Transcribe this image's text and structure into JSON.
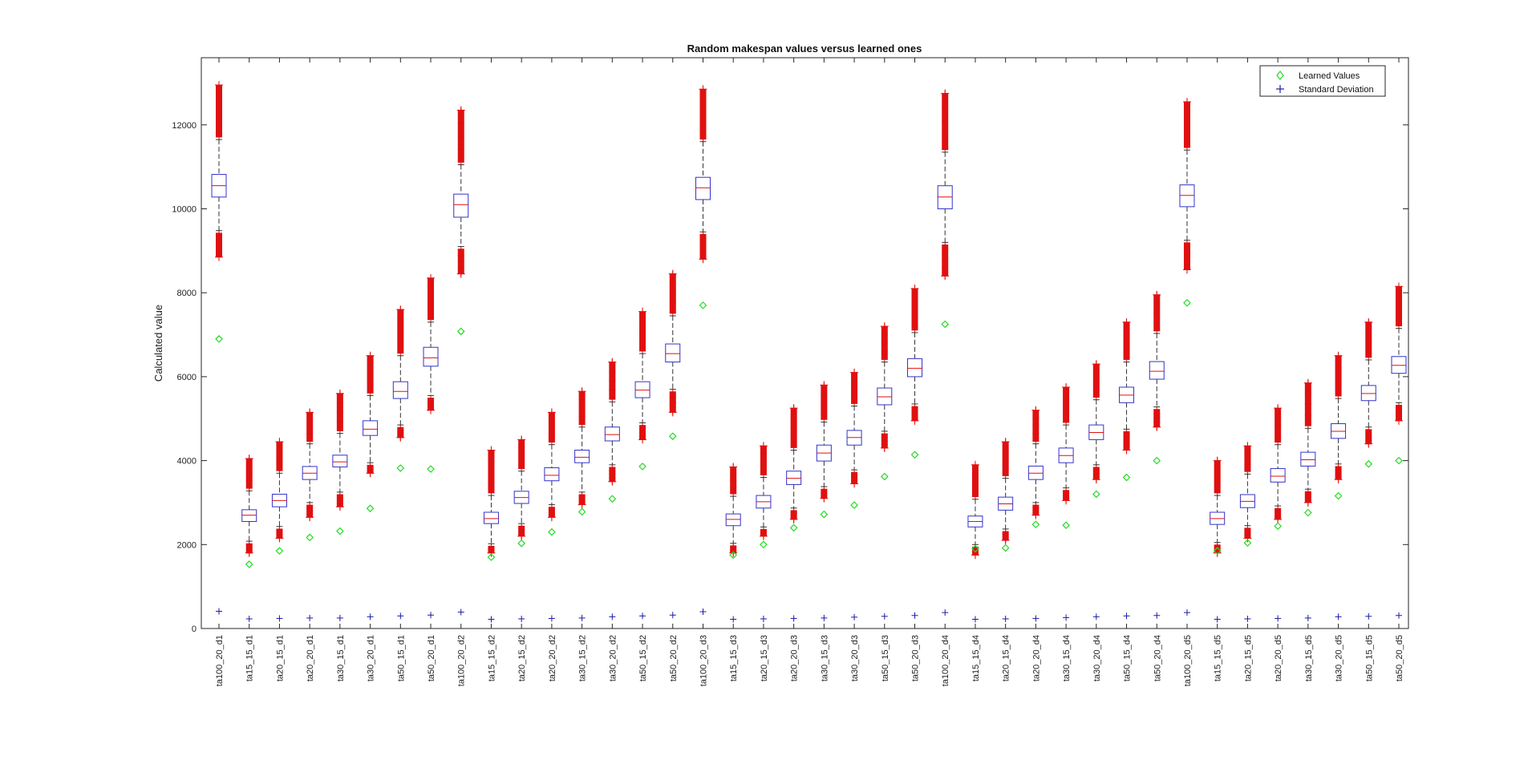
{
  "chart_data": {
    "type": "box",
    "title": "Random makespan values versus learned ones",
    "xlabel": "",
    "ylabel": "Calculated value",
    "ylim": [
      0,
      13600
    ],
    "yticks": [
      0,
      2000,
      4000,
      6000,
      8000,
      10000,
      12000
    ],
    "legend": {
      "placement": "top-right",
      "entries": [
        {
          "label": "Learned Values",
          "marker": "diamond",
          "color": "#22dd22"
        },
        {
          "label": "Standard Deviation",
          "marker": "plus",
          "color": "#1a1aa8"
        }
      ]
    },
    "colors": {
      "box": "#3333cc",
      "median": "#e01010",
      "outlier": "#e01010",
      "whisker": "#333333",
      "learned": "#22dd22",
      "stddev": "#1a1aa8"
    },
    "categories": [
      "ta100_20_d1",
      "ta15_15_d1",
      "ta20_15_d1",
      "ta20_20_d1",
      "ta30_15_d1",
      "ta30_20_d1",
      "ta50_15_d1",
      "ta50_20_d1",
      "ta100_20_d2",
      "ta15_15_d2",
      "ta20_15_d2",
      "ta20_20_d2",
      "ta30_15_d2",
      "ta30_20_d2",
      "ta50_15_d2",
      "ta50_20_d2",
      "ta100_20_d3",
      "ta15_15_d3",
      "ta20_15_d3",
      "ta20_20_d3",
      "ta30_15_d3",
      "ta30_20_d3",
      "ta50_15_d3",
      "ta50_20_d3",
      "ta100_20_d4",
      "ta15_15_d4",
      "ta20_15_d4",
      "ta20_20_d4",
      "ta30_15_d4",
      "ta30_20_d4",
      "ta50_15_d4",
      "ta50_20_d4",
      "ta100_20_d5",
      "ta15_15_d5",
      "ta20_15_d5",
      "ta20_20_d5",
      "ta30_15_d5",
      "ta30_20_d5",
      "ta50_15_d5",
      "ta50_20_d5"
    ],
    "boxes": [
      {
        "q1": 10280,
        "median": 10550,
        "q3": 10820,
        "wlo": 9480,
        "whi": 11650,
        "omin": 8850,
        "omax": 12950
      },
      {
        "q1": 2550,
        "median": 2700,
        "q3": 2830,
        "wlo": 2080,
        "whi": 3280,
        "omin": 1800,
        "omax": 4050
      },
      {
        "q1": 2900,
        "median": 3050,
        "q3": 3200,
        "wlo": 2430,
        "whi": 3700,
        "omin": 2150,
        "omax": 4450
      },
      {
        "q1": 3550,
        "median": 3700,
        "q3": 3860,
        "wlo": 3000,
        "whi": 4400,
        "omin": 2650,
        "omax": 5150
      },
      {
        "q1": 3850,
        "median": 3970,
        "q3": 4130,
        "wlo": 3250,
        "whi": 4650,
        "omin": 2900,
        "omax": 5600
      },
      {
        "q1": 4600,
        "median": 4750,
        "q3": 4950,
        "wlo": 3950,
        "whi": 5550,
        "omin": 3700,
        "omax": 6500
      },
      {
        "q1": 5480,
        "median": 5650,
        "q3": 5880,
        "wlo": 4850,
        "whi": 6500,
        "omin": 4550,
        "omax": 7600
      },
      {
        "q1": 6250,
        "median": 6450,
        "q3": 6700,
        "wlo": 5550,
        "whi": 7300,
        "omin": 5200,
        "omax": 8350
      },
      {
        "q1": 9800,
        "median": 10100,
        "q3": 10350,
        "wlo": 9100,
        "whi": 11050,
        "omin": 8450,
        "omax": 12350
      },
      {
        "q1": 2500,
        "median": 2620,
        "q3": 2770,
        "wlo": 2020,
        "whi": 3170,
        "omin": 1800,
        "omax": 4250
      },
      {
        "q1": 2980,
        "median": 3120,
        "q3": 3270,
        "wlo": 2500,
        "whi": 3750,
        "omin": 2200,
        "omax": 4500
      },
      {
        "q1": 3520,
        "median": 3650,
        "q3": 3830,
        "wlo": 2950,
        "whi": 4380,
        "omin": 2650,
        "omax": 5150
      },
      {
        "q1": 3950,
        "median": 4080,
        "q3": 4250,
        "wlo": 3250,
        "whi": 4800,
        "omin": 2950,
        "omax": 5650
      },
      {
        "q1": 4470,
        "median": 4620,
        "q3": 4800,
        "wlo": 3900,
        "whi": 5400,
        "omin": 3500,
        "omax": 6350
      },
      {
        "q1": 5500,
        "median": 5680,
        "q3": 5880,
        "wlo": 4900,
        "whi": 6550,
        "omin": 4500,
        "omax": 7550
      },
      {
        "q1": 6350,
        "median": 6550,
        "q3": 6780,
        "wlo": 5700,
        "whi": 7450,
        "omin": 5150,
        "omax": 8450
      },
      {
        "q1": 10220,
        "median": 10500,
        "q3": 10750,
        "wlo": 9450,
        "whi": 11600,
        "omin": 8800,
        "omax": 12850
      },
      {
        "q1": 2450,
        "median": 2600,
        "q3": 2730,
        "wlo": 2030,
        "whi": 3150,
        "omin": 1800,
        "omax": 3850
      },
      {
        "q1": 2870,
        "median": 3020,
        "q3": 3170,
        "wlo": 2420,
        "whi": 3600,
        "omin": 2200,
        "omax": 4350
      },
      {
        "q1": 3430,
        "median": 3580,
        "q3": 3750,
        "wlo": 2870,
        "whi": 4250,
        "omin": 2600,
        "omax": 5250
      },
      {
        "q1": 3990,
        "median": 4180,
        "q3": 4370,
        "wlo": 3380,
        "whi": 4920,
        "omin": 3100,
        "omax": 5800
      },
      {
        "q1": 4370,
        "median": 4550,
        "q3": 4720,
        "wlo": 3780,
        "whi": 5300,
        "omin": 3450,
        "omax": 6100
      },
      {
        "q1": 5330,
        "median": 5520,
        "q3": 5730,
        "wlo": 4700,
        "whi": 6350,
        "omin": 4300,
        "omax": 7200
      },
      {
        "q1": 6000,
        "median": 6200,
        "q3": 6430,
        "wlo": 5350,
        "whi": 7050,
        "omin": 4950,
        "omax": 8100
      },
      {
        "q1": 10000,
        "median": 10280,
        "q3": 10550,
        "wlo": 9200,
        "whi": 11350,
        "omin": 8400,
        "omax": 12750
      },
      {
        "q1": 2420,
        "median": 2550,
        "q3": 2680,
        "wlo": 2000,
        "whi": 3080,
        "omin": 1750,
        "omax": 3900
      },
      {
        "q1": 2820,
        "median": 2970,
        "q3": 3130,
        "wlo": 2370,
        "whi": 3580,
        "omin": 2100,
        "omax": 4450
      },
      {
        "q1": 3550,
        "median": 3700,
        "q3": 3870,
        "wlo": 3000,
        "whi": 4400,
        "omin": 2700,
        "omax": 5200
      },
      {
        "q1": 3950,
        "median": 4120,
        "q3": 4300,
        "wlo": 3350,
        "whi": 4850,
        "omin": 3050,
        "omax": 5750
      },
      {
        "q1": 4500,
        "median": 4670,
        "q3": 4850,
        "wlo": 3900,
        "whi": 5450,
        "omin": 3550,
        "omax": 6300
      },
      {
        "q1": 5380,
        "median": 5560,
        "q3": 5750,
        "wlo": 4750,
        "whi": 6350,
        "omin": 4250,
        "omax": 7300
      },
      {
        "q1": 5940,
        "median": 6130,
        "q3": 6360,
        "wlo": 5280,
        "whi": 7030,
        "omin": 4800,
        "omax": 7950
      },
      {
        "q1": 10050,
        "median": 10320,
        "q3": 10570,
        "wlo": 9250,
        "whi": 11400,
        "omin": 8550,
        "omax": 12550
      },
      {
        "q1": 2480,
        "median": 2620,
        "q3": 2770,
        "wlo": 2050,
        "whi": 3170,
        "omin": 1800,
        "omax": 4000
      },
      {
        "q1": 2880,
        "median": 3030,
        "q3": 3190,
        "wlo": 2450,
        "whi": 3680,
        "omin": 2150,
        "omax": 4350
      },
      {
        "q1": 3490,
        "median": 3630,
        "q3": 3810,
        "wlo": 2920,
        "whi": 4380,
        "omin": 2600,
        "omax": 5250
      },
      {
        "q1": 3870,
        "median": 4020,
        "q3": 4200,
        "wlo": 3320,
        "whi": 4770,
        "omin": 3000,
        "omax": 5850
      },
      {
        "q1": 4530,
        "median": 4700,
        "q3": 4880,
        "wlo": 3920,
        "whi": 5480,
        "omin": 3550,
        "omax": 6500
      },
      {
        "q1": 5430,
        "median": 5600,
        "q3": 5790,
        "wlo": 4800,
        "whi": 6400,
        "omin": 4400,
        "omax": 7300
      },
      {
        "q1": 6080,
        "median": 6270,
        "q3": 6480,
        "wlo": 5380,
        "whi": 7150,
        "omin": 4950,
        "omax": 8150
      }
    ],
    "learned": [
      6900,
      1530,
      1850,
      2170,
      2320,
      2860,
      3820,
      3800,
      7080,
      1700,
      2030,
      2300,
      2780,
      3090,
      3860,
      4580,
      7700,
      1750,
      2000,
      2400,
      2720,
      2940,
      3620,
      4140,
      7250,
      1900,
      1920,
      2480,
      2460,
      3200,
      3600,
      4000,
      7760,
      1850,
      2040,
      2440,
      2760,
      3160,
      3920,
      4000
    ],
    "std_dev": [
      410,
      230,
      240,
      250,
      250,
      280,
      300,
      320,
      390,
      220,
      230,
      240,
      250,
      280,
      300,
      320,
      400,
      220,
      230,
      240,
      250,
      270,
      290,
      310,
      380,
      220,
      230,
      240,
      260,
      280,
      300,
      310,
      380,
      220,
      230,
      240,
      250,
      280,
      290,
      310
    ]
  }
}
